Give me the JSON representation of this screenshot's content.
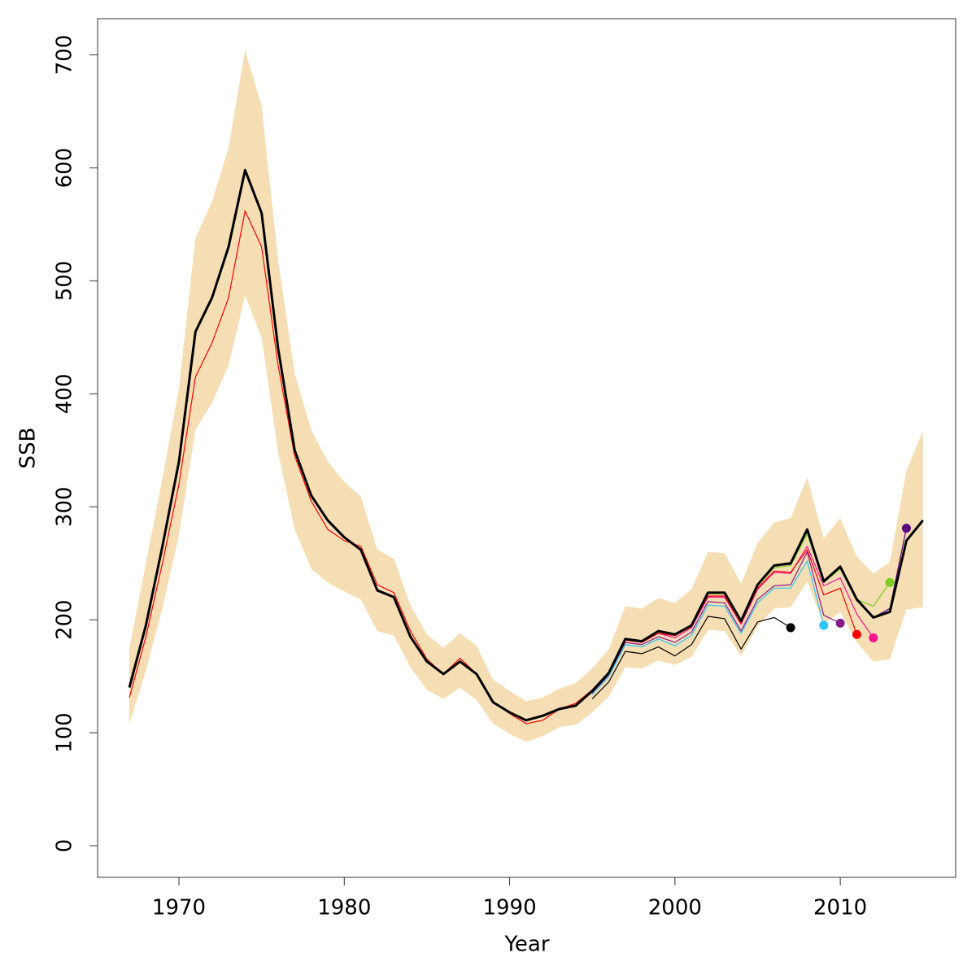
{
  "chart_data": {
    "type": "line",
    "xlabel": "Year",
    "ylabel": "SSB",
    "xlim": [
      1965.08,
      2016.98
    ],
    "ylim": [
      -28,
      732
    ],
    "xticks": [
      1970,
      1980,
      1990,
      2000,
      2010
    ],
    "yticks": [
      0,
      100,
      200,
      300,
      400,
      500,
      600,
      700
    ],
    "x": [
      1967,
      1968,
      1969,
      1970,
      1971,
      1972,
      1973,
      1974,
      1975,
      1976,
      1977,
      1978,
      1979,
      1980,
      1981,
      1982,
      1983,
      1984,
      1985,
      1986,
      1987,
      1988,
      1989,
      1990,
      1991,
      1992,
      1993,
      1994,
      1995,
      1996,
      1997,
      1998,
      1999,
      2000,
      2001,
      2002,
      2003,
      2004,
      2005,
      2006,
      2007,
      2008,
      2009,
      2010,
      2011,
      2012,
      2013,
      2014,
      2015
    ],
    "band": {
      "color": "#f5deb3",
      "lower": [
        108,
        155,
        210,
        275,
        368,
        392,
        425,
        487,
        450,
        348,
        280,
        245,
        233,
        225,
        218,
        190,
        186,
        158,
        138,
        130,
        140,
        129,
        108,
        99,
        92,
        97,
        105,
        107,
        118,
        132,
        158,
        157,
        164,
        160,
        167,
        191,
        190,
        168,
        194,
        210,
        211,
        234,
        196,
        207,
        180,
        163,
        165,
        209,
        211
      ],
      "upper": [
        174,
        250,
        325,
        405,
        538,
        570,
        618,
        704,
        655,
        518,
        418,
        368,
        340,
        322,
        309,
        262,
        254,
        213,
        187,
        175,
        188,
        177,
        147,
        137,
        128,
        131,
        139,
        144,
        157,
        174,
        212,
        210,
        219,
        215,
        227,
        260,
        259,
        232,
        268,
        286,
        290,
        326,
        272,
        290,
        256,
        241,
        251,
        332,
        367
      ]
    },
    "series": [
      {
        "color": "#000000",
        "values": [
          140,
          195,
          265,
          340,
          455,
          485,
          530,
          598,
          560,
          440,
          350,
          310,
          288,
          273,
          262,
          226,
          220,
          185,
          163,
          152,
          163,
          152,
          127,
          118,
          111,
          115,
          121,
          124,
          137,
          153,
          183,
          181,
          190,
          187,
          195,
          224,
          224,
          199,
          231,
          248,
          250,
          280,
          234,
          247,
          218,
          202,
          207,
          270,
          288
        ]
      },
      {
        "color": "#000000",
        "marker": "end",
        "x": [
          1995,
          1996,
          1997,
          1998,
          1999,
          2000,
          2001,
          2002,
          2003,
          2004,
          2005,
          2006,
          2007
        ],
        "values": [
          130,
          145,
          172,
          170,
          176,
          168,
          178,
          203,
          201,
          174,
          198,
          202,
          193
        ]
      },
      {
        "color": "#29c5f6",
        "marker": "end",
        "x": [
          1995,
          1996,
          1997,
          1998,
          1999,
          2000,
          2001,
          2002,
          2003,
          2004,
          2005,
          2006,
          2007,
          2008,
          2009
        ],
        "values": [
          134,
          150,
          178,
          176,
          183,
          177,
          186,
          213,
          212,
          188,
          215,
          228,
          228,
          252,
          195
        ]
      },
      {
        "color": "#8b1a89",
        "marker": "end",
        "x": [
          1995,
          1996,
          1997,
          1998,
          1999,
          2000,
          2001,
          2002,
          2003,
          2004,
          2005,
          2006,
          2007,
          2008,
          2009,
          2010
        ],
        "values": [
          135,
          151,
          180,
          178,
          185,
          180,
          189,
          216,
          215,
          190,
          218,
          230,
          231,
          260,
          204,
          197
        ]
      },
      {
        "color": "#ff0000",
        "marker": "end",
        "x": [
          1967,
          1968,
          1969,
          1970,
          1971,
          1972,
          1973,
          1974,
          1975,
          1976,
          1977,
          1978,
          1979,
          1980,
          1981,
          1982,
          1983,
          1984,
          1985,
          1986,
          1987,
          1988,
          1989,
          1990,
          1991,
          1992,
          1993,
          1994,
          1995,
          1996,
          1997,
          1998,
          1999,
          2000,
          2001,
          2002,
          2003,
          2004,
          2005,
          2006,
          2007,
          2008,
          2009,
          2010,
          2011
        ],
        "values": [
          131,
          185,
          250,
          320,
          415,
          445,
          485,
          562,
          530,
          425,
          345,
          305,
          280,
          270,
          265,
          231,
          224,
          190,
          165,
          152,
          166,
          152,
          127,
          117,
          108,
          111,
          121,
          126,
          138,
          153,
          182,
          180,
          188,
          186,
          194,
          221,
          221,
          197,
          228,
          243,
          242,
          262,
          222,
          228,
          187
        ]
      },
      {
        "color": "#ff1493",
        "marker": "end",
        "x": [
          1995,
          1996,
          1997,
          1998,
          1999,
          2000,
          2001,
          2002,
          2003,
          2004,
          2005,
          2006,
          2007,
          2008,
          2009,
          2010,
          2011,
          2012
        ],
        "values": [
          136,
          153,
          182,
          180,
          188,
          184,
          193,
          220,
          220,
          196,
          227,
          242,
          241,
          265,
          230,
          237,
          205,
          184
        ]
      },
      {
        "color": "#7ccd1c",
        "marker": "end",
        "x": [
          1995,
          1996,
          1997,
          1998,
          1999,
          2000,
          2001,
          2002,
          2003,
          2004,
          2005,
          2006,
          2007,
          2008,
          2009,
          2010,
          2011,
          2012,
          2013
        ],
        "values": [
          137,
          153,
          183,
          181,
          190,
          187,
          195,
          223,
          223,
          198,
          230,
          246,
          248,
          276,
          233,
          245,
          218,
          212,
          233
        ]
      },
      {
        "color": "#5b0080",
        "marker": "end",
        "x": [
          1995,
          1996,
          1997,
          1998,
          1999,
          2000,
          2001,
          2002,
          2003,
          2004,
          2005,
          2006,
          2007,
          2008,
          2009,
          2010,
          2011,
          2012,
          2013,
          2014
        ],
        "values": [
          137,
          153,
          183,
          181,
          190,
          187,
          195,
          224,
          224,
          199,
          231,
          248,
          249,
          280,
          233,
          247,
          217,
          202,
          210,
          281
        ]
      }
    ]
  }
}
